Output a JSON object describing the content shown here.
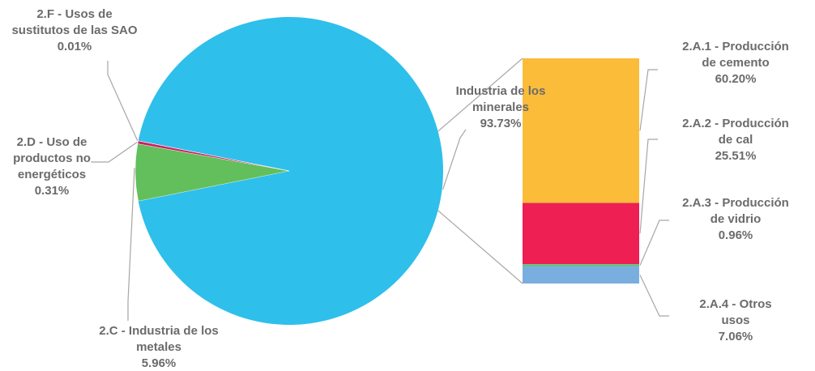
{
  "chart_data": {
    "type": "bar-of-pie",
    "pie": {
      "slices": [
        {
          "name": "Industria de los minerales",
          "label_lines": [
            "Industria de los",
            "minerales"
          ],
          "value": 93.73,
          "value_text": "93.73%",
          "color": "#2fbfeb"
        },
        {
          "name": "2.C - Industria de los metales",
          "label_lines": [
            "2.C - Industria de los",
            "metales"
          ],
          "value": 5.96,
          "value_text": "5.96%",
          "color": "#62bf5b"
        },
        {
          "name": "2.D - Uso de productos no energéticos",
          "label_lines": [
            "2.D - Uso de",
            "productos no",
            "energéticos"
          ],
          "value": 0.31,
          "value_text": "0.31%",
          "color": "#d21f5f"
        },
        {
          "name": "2.F - Usos de sustitutos de las SAO",
          "label_lines": [
            "2.F - Usos de",
            "sustitutos de las SAO"
          ],
          "value": 0.01,
          "value_text": "0.01%",
          "color": "#7b3f99"
        }
      ]
    },
    "bar": {
      "segments": [
        {
          "name": "2.A.1 - Producción de cemento",
          "label_lines": [
            "2.A.1 - Producción",
            "de cemento"
          ],
          "value": 60.2,
          "value_text": "60.20%",
          "color": "#fbbc3a"
        },
        {
          "name": "2.A.2 - Producción de cal",
          "label_lines": [
            "2.A.2 - Producción",
            "de cal"
          ],
          "value": 25.51,
          "value_text": "25.51%",
          "color": "#ed1f53"
        },
        {
          "name": "2.A.3 - Producción de vidrio",
          "label_lines": [
            "2.A.3 - Producción",
            "de vidrio"
          ],
          "value": 0.96,
          "value_text": "0.96%",
          "color": "#5cc585"
        },
        {
          "name": "2.A.4 - Otros usos",
          "label_lines": [
            "2.A.4 - Otros",
            "usos"
          ],
          "value": 7.06,
          "value_text": "7.06%",
          "color": "#7aaedf"
        }
      ]
    }
  }
}
